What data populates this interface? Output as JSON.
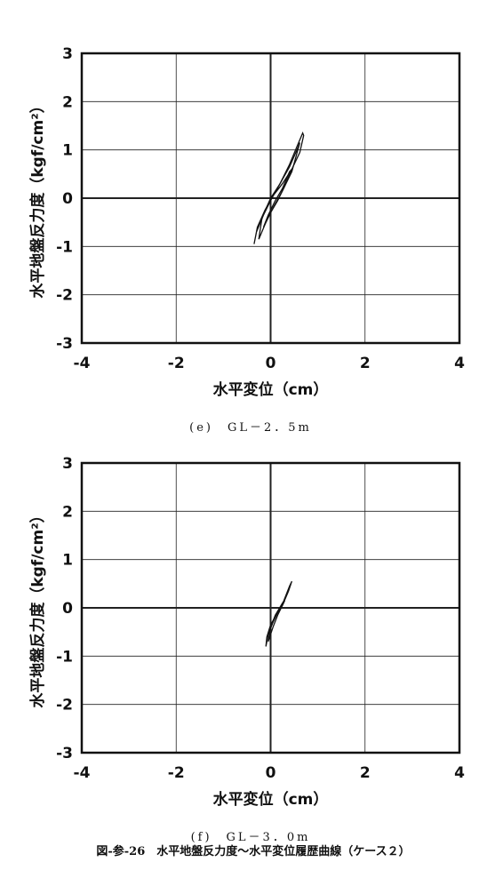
{
  "chart_data": [
    {
      "type": "line",
      "title": "(e)　GL－2．5m",
      "xlabel": "水平変位（cm）",
      "ylabel": "水平地盤反力度（kgf/cm²）",
      "xlim": [
        -4,
        4
      ],
      "ylim": [
        -3,
        3
      ],
      "xticks": [
        -4,
        -2,
        0,
        2,
        4
      ],
      "yticks": [
        -3,
        -2,
        -1,
        0,
        1,
        2,
        3
      ],
      "grid": true,
      "color": "#111111",
      "series": [
        {
          "x": [
            -0.35,
            -0.3,
            -0.15,
            0.0,
            0.2,
            0.4,
            0.55,
            0.68,
            0.7,
            0.62,
            0.45,
            0.25,
            0.05,
            -0.12,
            -0.28,
            -0.35
          ],
          "values": [
            -0.95,
            -0.7,
            -0.35,
            -0.05,
            0.3,
            0.7,
            1.05,
            1.35,
            1.3,
            0.95,
            0.6,
            0.3,
            0.05,
            -0.25,
            -0.6,
            -0.95
          ]
        },
        {
          "x": [
            -0.25,
            -0.1,
            0.05,
            0.25,
            0.45,
            0.62,
            0.58,
            0.4,
            0.2,
            0.0,
            -0.18,
            -0.25
          ],
          "values": [
            -0.85,
            -0.5,
            -0.2,
            0.15,
            0.55,
            1.15,
            1.05,
            0.65,
            0.3,
            0.0,
            -0.4,
            -0.85
          ]
        },
        {
          "x": [
            -0.15,
            0.0,
            0.15,
            0.3,
            0.45,
            0.4,
            0.25,
            0.1,
            -0.05,
            -0.15
          ],
          "values": [
            -0.6,
            -0.3,
            -0.05,
            0.25,
            0.6,
            0.55,
            0.2,
            -0.05,
            -0.35,
            -0.6
          ]
        }
      ]
    },
    {
      "type": "line",
      "title": "(f)　GL－3．0m",
      "xlabel": "水平変位（cm）",
      "ylabel": "水平地盤反力度（kgf/cm²）",
      "xlim": [
        -4,
        4
      ],
      "ylim": [
        -3,
        3
      ],
      "xticks": [
        -4,
        -2,
        0,
        2,
        4
      ],
      "yticks": [
        -3,
        -2,
        -1,
        0,
        1,
        2,
        3
      ],
      "grid": true,
      "color": "#111111",
      "series": [
        {
          "x": [
            -0.1,
            -0.05,
            0.05,
            0.15,
            0.28,
            0.4,
            0.45,
            0.38,
            0.25,
            0.12,
            0.0,
            -0.08,
            -0.1
          ],
          "values": [
            -0.8,
            -0.55,
            -0.3,
            -0.1,
            0.15,
            0.45,
            0.55,
            0.35,
            0.05,
            -0.15,
            -0.35,
            -0.6,
            -0.8
          ]
        },
        {
          "x": [
            -0.05,
            0.05,
            0.15,
            0.3,
            0.25,
            0.1,
            0.0,
            -0.05
          ],
          "values": [
            -0.7,
            -0.4,
            -0.15,
            0.15,
            0.1,
            -0.15,
            -0.4,
            -0.7
          ]
        }
      ]
    }
  ],
  "figure_caption": "図-参-26　水平地盤反力度～水平変位履歴曲線（ケース２）"
}
